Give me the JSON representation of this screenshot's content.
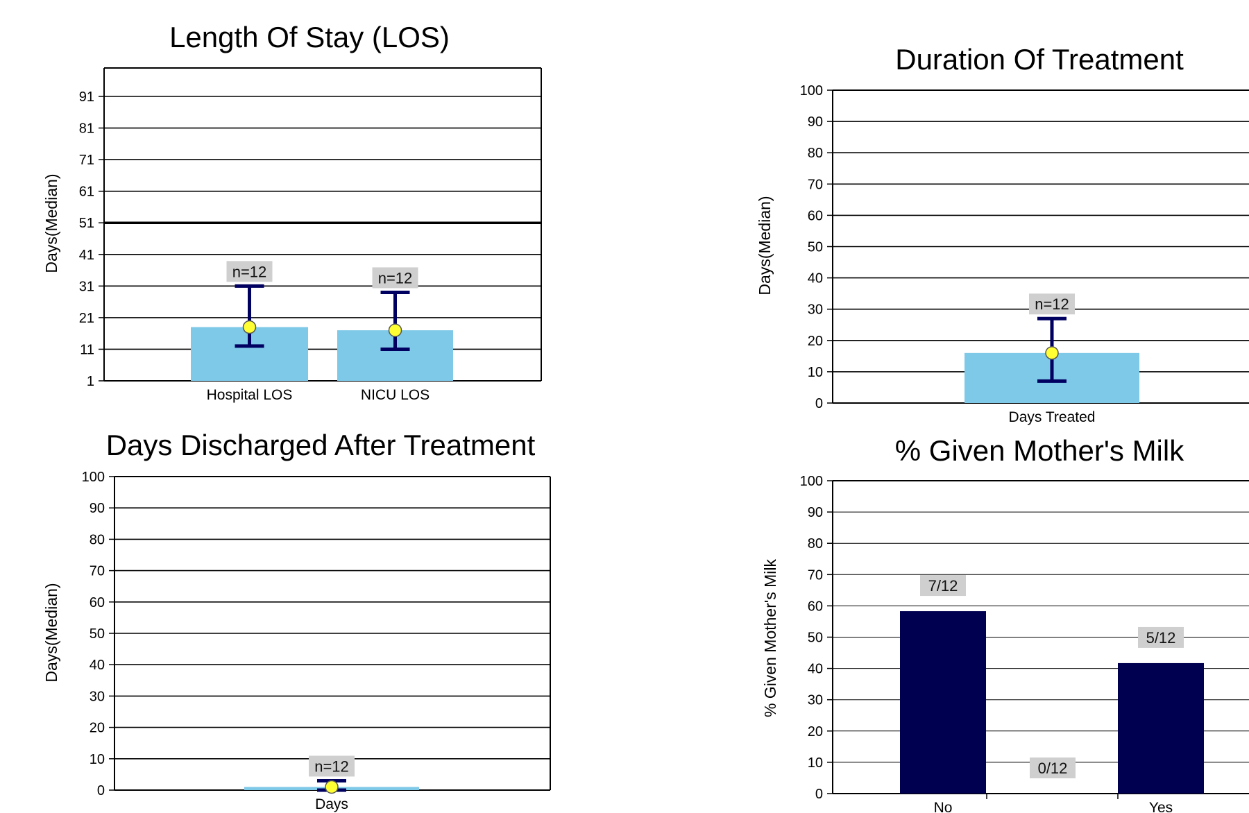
{
  "chart_data": [
    {
      "id": "los",
      "type": "bar",
      "title": "Length Of Stay (LOS)",
      "ylabel": "Days(Median)",
      "xlabel": "",
      "ylim": [
        1,
        100
      ],
      "yticks": [
        1,
        11,
        21,
        31,
        41,
        51,
        61,
        71,
        81,
        91
      ],
      "reference_line": 51,
      "grid": true,
      "bar_color": "#7ec8e8",
      "categories": [
        "Hospital LOS",
        "NICU LOS"
      ],
      "values": [
        18,
        17
      ],
      "error_low": [
        12,
        11
      ],
      "error_high": [
        31,
        29
      ],
      "median_marker": [
        18,
        17
      ],
      "data_labels": [
        "n=12",
        "n=12"
      ]
    },
    {
      "id": "dot",
      "type": "bar",
      "title": "Duration Of Treatment",
      "ylabel": "Days(Median)",
      "xlabel": "",
      "ylim": [
        0,
        100
      ],
      "yticks": [
        0,
        10,
        20,
        30,
        40,
        50,
        60,
        70,
        80,
        90,
        100
      ],
      "grid": true,
      "bar_color": "#7ec8e8",
      "categories": [
        "Days Treated"
      ],
      "values": [
        16
      ],
      "error_low": [
        7
      ],
      "error_high": [
        27
      ],
      "median_marker": [
        16
      ],
      "data_labels": [
        "n=12"
      ]
    },
    {
      "id": "dda",
      "type": "bar",
      "title": "Days Discharged After Treatment",
      "ylabel": "Days(Median)",
      "xlabel": "",
      "ylim": [
        0,
        100
      ],
      "yticks": [
        0,
        10,
        20,
        30,
        40,
        50,
        60,
        70,
        80,
        90,
        100
      ],
      "grid": true,
      "bar_color": "#7ec8e8",
      "categories": [
        "Days"
      ],
      "values": [
        1
      ],
      "error_low": [
        0
      ],
      "error_high": [
        3
      ],
      "median_marker": [
        1
      ],
      "data_labels": [
        "n=12"
      ]
    },
    {
      "id": "milk",
      "type": "bar",
      "title": "% Given Mother's Milk",
      "ylabel": "% Given Mother's Milk",
      "xlabel": "",
      "ylim": [
        0,
        100
      ],
      "yticks": [
        0,
        10,
        20,
        30,
        40,
        50,
        60,
        70,
        80,
        90,
        100
      ],
      "grid": true,
      "bar_color": "#000050",
      "categories": [
        "No",
        "",
        "Yes"
      ],
      "values": [
        58.3,
        0,
        41.7
      ],
      "data_labels": [
        "7/12",
        "0/12",
        "5/12"
      ]
    }
  ]
}
